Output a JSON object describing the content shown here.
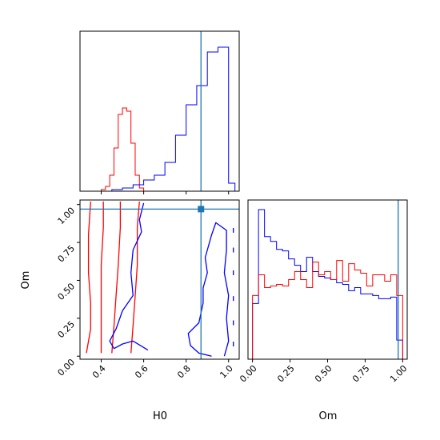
{
  "chart_data": {
    "type": "corner",
    "parameters": [
      "H0",
      "Om"
    ],
    "truth": {
      "H0": 0.87,
      "Om": 0.97
    },
    "colors": {
      "red_sample": "#ff0000",
      "blue_sample": "#0000ff",
      "truth": "#1f77b4"
    },
    "panels": [
      {
        "id": "H0-marginal",
        "type": "step-histogram",
        "xlim": [
          0.3,
          1.05
        ],
        "ylim": [
          0,
          1.0
        ],
        "y_ticks_shown": false,
        "series": [
          {
            "color": "#ff0000",
            "edges": [
              0.4,
              0.42,
              0.44,
              0.46,
              0.48,
              0.5,
              0.52,
              0.54,
              0.56,
              0.58,
              0.6
            ],
            "heights": [
              0.01,
              0.03,
              0.1,
              0.27,
              0.48,
              0.52,
              0.5,
              0.3,
              0.1,
              0.02
            ]
          },
          {
            "color": "#0000ff",
            "edges": [
              0.45,
              0.5,
              0.55,
              0.6,
              0.65,
              0.7,
              0.75,
              0.8,
              0.85,
              0.9,
              0.95,
              1.0,
              1.03
            ],
            "heights": [
              0.01,
              0.02,
              0.04,
              0.07,
              0.1,
              0.18,
              0.35,
              0.54,
              0.66,
              0.87,
              0.9,
              0.05
            ]
          }
        ]
      },
      {
        "id": "H0-Om-contours",
        "type": "contour",
        "xlim": [
          0.3,
          1.05
        ],
        "ylim": [
          -0.02,
          1.03
        ],
        "x_ticks": [
          "0.4",
          "0.6",
          "0.8",
          "1.0"
        ],
        "y_ticks": [
          "0.00",
          "0.25",
          "0.50",
          "0.75",
          "1.00"
        ],
        "xlabel": "H0",
        "ylabel": "Om",
        "series": [
          {
            "color": "#ff0000",
            "curves": [
              [
                [
                  0.33,
                  0.02
                ],
                [
                  0.35,
                  0.18
                ],
                [
                  0.35,
                  0.35
                ],
                [
                  0.34,
                  0.55
                ],
                [
                  0.34,
                  0.8
                ],
                [
                  0.35,
                  1.02
                ]
              ],
              [
                [
                  0.4,
                  0.02
                ],
                [
                  0.4,
                  0.2
                ],
                [
                  0.4,
                  0.4
                ],
                [
                  0.4,
                  0.6
                ],
                [
                  0.41,
                  0.85
                ],
                [
                  0.41,
                  1.02
                ]
              ],
              [
                [
                  0.45,
                  0.02
                ],
                [
                  0.46,
                  0.2
                ],
                [
                  0.47,
                  0.4
                ],
                [
                  0.48,
                  0.6
                ],
                [
                  0.49,
                  0.85
                ],
                [
                  0.49,
                  1.02
                ]
              ],
              [
                [
                  0.54,
                  0.02
                ],
                [
                  0.55,
                  0.2
                ],
                [
                  0.56,
                  0.4
                ],
                [
                  0.57,
                  0.6
                ],
                [
                  0.57,
                  0.85
                ],
                [
                  0.58,
                  1.02
                ]
              ]
            ]
          },
          {
            "color": "#0000ff",
            "curves": [
              [
                [
                  0.6,
                  1.01
                ],
                [
                  0.58,
                  0.9
                ],
                [
                  0.59,
                  0.82
                ],
                [
                  0.55,
                  0.7
                ],
                [
                  0.54,
                  0.55
                ],
                [
                  0.55,
                  0.4
                ],
                [
                  0.5,
                  0.3
                ],
                [
                  0.47,
                  0.18
                ],
                [
                  0.44,
                  0.1
                ],
                [
                  0.46,
                  0.05
                ],
                [
                  0.5,
                  0.08
                ],
                [
                  0.55,
                  0.1
                ],
                [
                  0.62,
                  0.04
                ]
              ],
              [
                [
                  0.92,
                  0.0
                ],
                [
                  0.86,
                  0.02
                ],
                [
                  0.82,
                  0.07
                ],
                [
                  0.81,
                  0.15
                ],
                [
                  0.86,
                  0.22
                ],
                [
                  0.88,
                  0.35
                ],
                [
                  0.88,
                  0.45
                ],
                [
                  0.9,
                  0.55
                ],
                [
                  0.89,
                  0.65
                ],
                [
                  0.92,
                  0.8
                ],
                [
                  0.94,
                  0.88
                ],
                [
                  0.99,
                  0.83
                ],
                [
                  0.99,
                  0.7
                ],
                [
                  0.98,
                  0.55
                ],
                [
                  1.0,
                  0.4
                ],
                [
                  0.99,
                  0.25
                ],
                [
                  1.0,
                  0.1
                ],
                [
                  0.98,
                  0.0
                ]
              ]
            ]
          }
        ]
      },
      {
        "id": "Om-marginal",
        "type": "step-histogram",
        "xlim": [
          -0.03,
          1.03
        ],
        "ylim": [
          0,
          1.0
        ],
        "x_ticks": [
          "0.00",
          "0.25",
          "0.50",
          "0.75",
          "1.00"
        ],
        "xlabel": "Om",
        "y_ticks_shown": false,
        "series": [
          {
            "color": "#0000ff",
            "edges": [
              0.0,
              0.04,
              0.08,
              0.12,
              0.16,
              0.2,
              0.24,
              0.28,
              0.32,
              0.36,
              0.4,
              0.44,
              0.48,
              0.52,
              0.56,
              0.6,
              0.64,
              0.68,
              0.72,
              0.76,
              0.8,
              0.84,
              0.88,
              0.92,
              0.96,
              1.0
            ],
            "heights": [
              0.35,
              0.94,
              0.77,
              0.74,
              0.69,
              0.68,
              0.63,
              0.59,
              0.55,
              0.64,
              0.55,
              0.52,
              0.51,
              0.5,
              0.48,
              0.47,
              0.43,
              0.45,
              0.41,
              0.41,
              0.4,
              0.38,
              0.38,
              0.39,
              0.12
            ]
          },
          {
            "color": "#ff0000",
            "edges": [
              0.0,
              0.04,
              0.08,
              0.12,
              0.16,
              0.2,
              0.24,
              0.28,
              0.32,
              0.36,
              0.4,
              0.44,
              0.48,
              0.52,
              0.56,
              0.6,
              0.64,
              0.68,
              0.72,
              0.76,
              0.8,
              0.84,
              0.88,
              0.92,
              0.96,
              1.0
            ],
            "heights": [
              0.4,
              0.53,
              0.45,
              0.46,
              0.47,
              0.46,
              0.5,
              0.55,
              0.5,
              0.45,
              0.61,
              0.53,
              0.55,
              0.5,
              0.62,
              0.49,
              0.6,
              0.56,
              0.54,
              0.46,
              0.53,
              0.53,
              0.49,
              0.53,
              0.4
            ]
          }
        ]
      }
    ]
  }
}
